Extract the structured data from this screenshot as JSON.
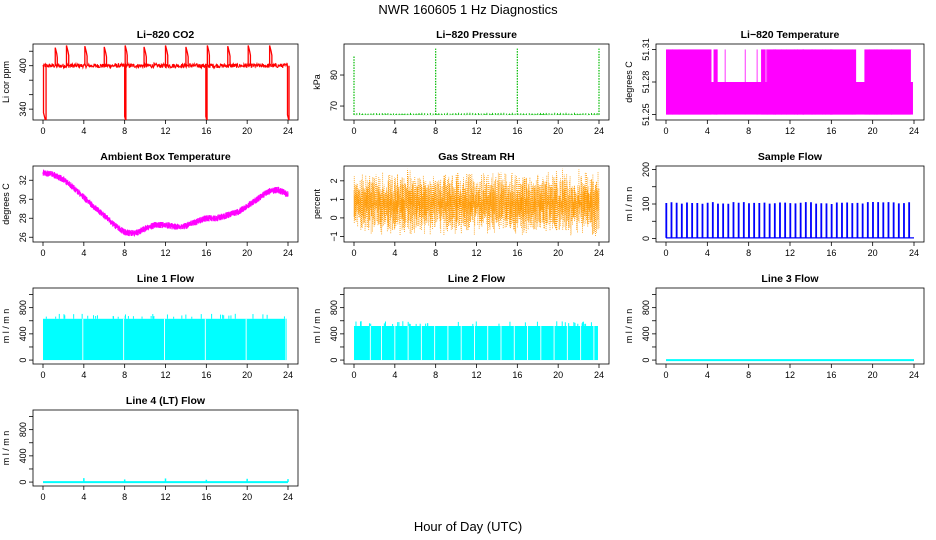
{
  "figure": {
    "title": "NWR  160605  1 Hz Diagnostics",
    "xlabel": "Hour of Day (UTC)"
  },
  "chart_data": [
    {
      "id": "co2",
      "type": "line",
      "title": "Li−820 CO2",
      "ylabel": "Li cor ppm",
      "xlim": [
        0,
        24
      ],
      "xticks": [
        0,
        4,
        8,
        12,
        16,
        20,
        24
      ],
      "ylim": [
        325,
        430
      ],
      "yticks": [
        340,
        360,
        380,
        400,
        420
      ],
      "ytick_labels": [
        "340",
        "",
        "",
        "400",
        ""
      ],
      "color": "#ff0000",
      "baseline": 400,
      "noise": 3,
      "events": [
        {
          "x": 0.05,
          "y": 335,
          "w": 0.25
        },
        {
          "x": 1.2,
          "y": 425,
          "w": 0.2
        },
        {
          "x": 2.3,
          "y": 428,
          "w": 0.22
        },
        {
          "x": 4.1,
          "y": 427,
          "w": 0.22
        },
        {
          "x": 6.0,
          "y": 426,
          "w": 0.22
        },
        {
          "x": 8.0,
          "y": 330,
          "w": 0.12
        },
        {
          "x": 8.05,
          "y": 428,
          "w": 0.2
        },
        {
          "x": 9.9,
          "y": 426,
          "w": 0.22
        },
        {
          "x": 12.0,
          "y": 428,
          "w": 0.22
        },
        {
          "x": 14.0,
          "y": 426,
          "w": 0.22
        },
        {
          "x": 15.95,
          "y": 330,
          "w": 0.12
        },
        {
          "x": 16.1,
          "y": 428,
          "w": 0.2
        },
        {
          "x": 18.1,
          "y": 427,
          "w": 0.22
        },
        {
          "x": 20.1,
          "y": 428,
          "w": 0.22
        },
        {
          "x": 22.2,
          "y": 428,
          "w": 0.22
        },
        {
          "x": 23.95,
          "y": 332,
          "w": 0.15
        }
      ]
    },
    {
      "id": "pressure",
      "type": "line",
      "title": "Li−820 Pressure",
      "ylabel": "kPa",
      "xlim": [
        0,
        24
      ],
      "xticks": [
        0,
        4,
        8,
        12,
        16,
        20,
        24
      ],
      "ylim": [
        65.5,
        90
      ],
      "yticks": [
        70,
        80
      ],
      "ytick_labels": [
        "70",
        "80"
      ],
      "color": "#00bb00",
      "baseline": 67.2,
      "noise": 0.15,
      "spikes": [
        {
          "x": 0.0,
          "y": 86
        },
        {
          "x": 8.0,
          "y": 88.5
        },
        {
          "x": 16.0,
          "y": 88.5
        },
        {
          "x": 24.0,
          "y": 88.5
        }
      ]
    },
    {
      "id": "li820temp",
      "type": "band",
      "title": "Li−820 Temperature",
      "ylabel": "degrees C",
      "xlim": [
        0,
        24
      ],
      "xticks": [
        0,
        4,
        8,
        12,
        16,
        20,
        24
      ],
      "ylim": [
        51.245,
        51.315
      ],
      "yticks": [
        51.25,
        51.28,
        51.31
      ],
      "ytick_labels": [
        "51.25",
        "51.28",
        "51.31"
      ],
      "color": "#ff00ff",
      "high_segments": [
        [
          0,
          4.4
        ],
        [
          4.6,
          5.0
        ],
        [
          9.2,
          9.6
        ],
        [
          9.8,
          18.4
        ],
        [
          19.2,
          23.7
        ]
      ],
      "low_y": 51.25,
      "mid_y": 51.28,
      "high_y": 51.31
    },
    {
      "id": "ambient",
      "type": "line",
      "title": "Ambient Box Temperature",
      "ylabel": "degrees C",
      "xlim": [
        0,
        24
      ],
      "xticks": [
        0,
        4,
        8,
        12,
        16,
        20,
        24
      ],
      "ylim": [
        25.5,
        33.5
      ],
      "yticks": [
        26,
        28,
        30,
        32
      ],
      "ytick_labels": [
        "26",
        "28",
        "30",
        "32"
      ],
      "color": "#ff00ff",
      "noise": 0.35,
      "x": [
        0,
        1,
        2,
        3,
        4,
        5,
        6,
        7,
        8,
        9,
        10,
        11,
        12,
        13,
        14,
        15,
        16,
        17,
        18,
        19,
        20,
        21,
        22,
        23,
        24
      ],
      "y": [
        32.8,
        32.6,
        32.1,
        31.2,
        30.2,
        29.2,
        28.3,
        27.3,
        26.5,
        26.4,
        26.9,
        27.3,
        27.3,
        27.1,
        27.2,
        27.6,
        28.0,
        28.0,
        28.3,
        28.6,
        29.3,
        30.0,
        30.8,
        31.0,
        30.5
      ]
    },
    {
      "id": "rh",
      "type": "noise",
      "title": "Gas Stream RH",
      "ylabel": "percent",
      "xlim": [
        0,
        24
      ],
      "xticks": [
        0,
        4,
        8,
        12,
        16,
        20,
        24
      ],
      "ylim": [
        -1.3,
        2.8
      ],
      "yticks": [
        -1,
        0,
        1,
        2
      ],
      "ytick_labels": [
        "−1",
        "0",
        "1",
        "2"
      ],
      "color": "#ff9900",
      "baseline": 0.8,
      "amplitude": 1.2
    },
    {
      "id": "sample",
      "type": "pulses",
      "title": "Sample Flow",
      "ylabel": "m l / m n",
      "xlim": [
        0,
        24
      ],
      "xticks": [
        0,
        4,
        8,
        12,
        16,
        20,
        24
      ],
      "ylim": [
        -10,
        210
      ],
      "yticks": [
        0,
        50,
        100,
        150,
        200
      ],
      "ytick_labels": [
        "0",
        "",
        "100",
        "",
        "200"
      ],
      "color": "#0000ff",
      "low": 2,
      "high": 100,
      "period": 0.5,
      "duty": 0.12,
      "max_peak": 110
    },
    {
      "id": "line1",
      "type": "block",
      "title": "Line 1 Flow",
      "ylabel": "m l / m n",
      "xlim": [
        0,
        24
      ],
      "xticks": [
        0,
        4,
        8,
        12,
        16,
        20,
        24
      ],
      "ylim": [
        -60,
        1100
      ],
      "yticks": [
        0,
        200,
        400,
        600,
        800,
        1000
      ],
      "ytick_labels": [
        "0",
        "",
        "400",
        "",
        "800",
        ""
      ],
      "color": "#00ffff",
      "top": 630,
      "gaps": [
        3.9,
        7.9,
        11.9,
        15.9,
        19.9,
        23.8
      ]
    },
    {
      "id": "line2",
      "type": "block",
      "title": "Line 2 Flow",
      "ylabel": "m l / m n",
      "xlim": [
        0,
        24
      ],
      "xticks": [
        0,
        4,
        8,
        12,
        16,
        20,
        24
      ],
      "ylim": [
        -60,
        1100
      ],
      "yticks": [
        0,
        200,
        400,
        600,
        800,
        1000
      ],
      "ytick_labels": [
        "0",
        "",
        "400",
        "",
        "800",
        ""
      ],
      "color": "#00ffff",
      "top": 520,
      "gaps": [
        1.6,
        2.7,
        4.0,
        5.3,
        6.6,
        7.9,
        9.2,
        10.5,
        11.8,
        13.1,
        14.4,
        15.7,
        17.0,
        18.3,
        19.6,
        20.9,
        22.2,
        23.5
      ]
    },
    {
      "id": "line3",
      "type": "flat",
      "title": "Line 3 Flow",
      "ylabel": "m l / m n",
      "xlim": [
        0,
        24
      ],
      "xticks": [
        0,
        4,
        8,
        12,
        16,
        20,
        24
      ],
      "ylim": [
        -60,
        1100
      ],
      "yticks": [
        0,
        200,
        400,
        600,
        800,
        1000
      ],
      "ytick_labels": [
        "0",
        "",
        "400",
        "",
        "800",
        ""
      ],
      "color": "#00ffff",
      "value": 0
    },
    {
      "id": "line4",
      "type": "flat",
      "title": "Line 4 (LT) Flow",
      "ylabel": "m l / m n",
      "xlim": [
        0,
        24
      ],
      "xticks": [
        0,
        4,
        8,
        12,
        16,
        20,
        24
      ],
      "ylim": [
        -60,
        1100
      ],
      "yticks": [
        0,
        200,
        400,
        600,
        800,
        1000
      ],
      "ytick_labels": [
        "0",
        "",
        "400",
        "",
        "800",
        ""
      ],
      "color": "#00ffff",
      "value": 0,
      "spikes": [
        {
          "x": 4,
          "y": 60
        },
        {
          "x": 8,
          "y": 40
        },
        {
          "x": 12,
          "y": 55
        },
        {
          "x": 16,
          "y": 35
        },
        {
          "x": 20,
          "y": 50
        },
        {
          "x": 24,
          "y": 45
        }
      ]
    }
  ]
}
